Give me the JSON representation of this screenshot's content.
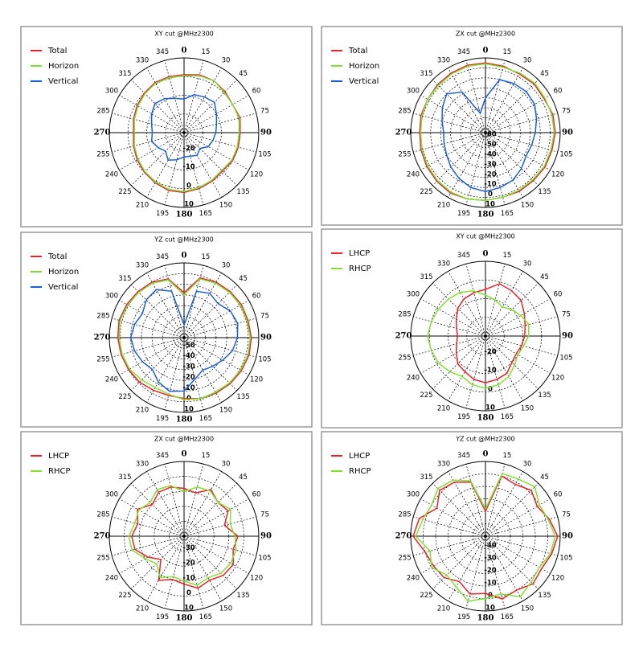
{
  "chart_data": [
    {
      "type": "polar",
      "title": "XY cut @MHz2300",
      "theta": [
        0,
        15,
        30,
        45,
        60,
        75,
        90,
        105,
        120,
        135,
        150,
        165,
        180,
        195,
        210,
        225,
        240,
        255,
        270,
        285,
        300,
        315,
        330,
        345
      ],
      "rlim": [
        -30,
        10
      ],
      "rticks": [
        -20,
        -10,
        0,
        10
      ],
      "series": [
        {
          "name": "Total",
          "color": "#e8202a",
          "values": [
            1,
            2,
            2,
            1,
            0,
            1,
            0,
            0,
            0,
            -1,
            0,
            1,
            2,
            2,
            1,
            0,
            -1,
            -2,
            -3,
            -2,
            -1,
            0,
            1,
            1
          ]
        },
        {
          "name": "Horizon",
          "color": "#80e030",
          "values": [
            0.5,
            1.5,
            2,
            0.5,
            0,
            0.5,
            -0.5,
            -0.5,
            -0.5,
            -1.5,
            -0.5,
            0.5,
            1.5,
            1.5,
            0.5,
            -0.5,
            -1.5,
            -2.5,
            -3.5,
            -2.5,
            -1.5,
            -0.5,
            0.5,
            0.5
          ]
        },
        {
          "name": "Vertical",
          "color": "#1a5fd6",
          "values": [
            -12,
            -9,
            -8,
            -7,
            -10,
            -12,
            -13,
            -14,
            -15,
            -18,
            -16,
            -17,
            -17,
            -15,
            -13,
            -16,
            -14,
            -12,
            -13,
            -12,
            -10,
            -8,
            -9,
            -11
          ]
        }
      ]
    },
    {
      "type": "polar",
      "title": "ZX cut @MHz2300",
      "theta": [
        0,
        15,
        30,
        45,
        60,
        75,
        90,
        105,
        120,
        135,
        150,
        165,
        180,
        195,
        210,
        225,
        240,
        255,
        270,
        285,
        300,
        315,
        330,
        345
      ],
      "rlim": [
        -65,
        10
      ],
      "rticks": [
        -60,
        -50,
        -40,
        -30,
        -20,
        -10,
        0,
        10
      ],
      "series": [
        {
          "name": "Total",
          "color": "#e8202a",
          "values": [
            5,
            4,
            3,
            4,
            3,
            5,
            5,
            4,
            4,
            3,
            3,
            2,
            3,
            4,
            5,
            4,
            3,
            2,
            1,
            2,
            2,
            3,
            4,
            5
          ]
        },
        {
          "name": "Horizon",
          "color": "#80e030",
          "values": [
            4,
            3,
            4,
            5,
            4,
            4,
            4,
            3,
            3,
            2,
            2,
            2,
            3,
            4,
            4,
            3,
            2,
            1,
            0,
            1,
            2,
            2,
            3,
            4
          ]
        },
        {
          "name": "Vertical",
          "color": "#1a5fd6",
          "values": [
            -30,
            -10,
            -8,
            -7,
            -8,
            -12,
            -15,
            -17,
            -18,
            -14,
            -10,
            -8,
            -6,
            -8,
            -12,
            -16,
            -20,
            -22,
            -23,
            -20,
            -15,
            -10,
            -18,
            -45
          ]
        }
      ]
    },
    {
      "type": "polar",
      "title": "YZ cut @MHz2300",
      "theta": [
        0,
        15,
        30,
        45,
        60,
        75,
        90,
        105,
        120,
        135,
        150,
        165,
        180,
        195,
        210,
        225,
        240,
        255,
        270,
        285,
        300,
        315,
        330,
        345
      ],
      "rlim": [
        -60,
        10
      ],
      "rticks": [
        -50,
        -40,
        -30,
        -20,
        -10,
        0,
        10
      ],
      "series": [
        {
          "name": "Total",
          "color": "#e8202a",
          "values": [
            -18,
            -2,
            0,
            1,
            2,
            2,
            3,
            3,
            2,
            1,
            0,
            -1,
            -3,
            -4,
            -3,
            -1,
            0,
            1,
            2,
            3,
            2,
            1,
            0,
            -3
          ]
        },
        {
          "name": "Horizon",
          "color": "#80e030",
          "values": [
            -20,
            -3,
            -1,
            0,
            1,
            1,
            2,
            2,
            1,
            0,
            -1,
            -1,
            -2,
            -5,
            -6,
            -4,
            -1,
            0,
            1,
            2,
            1,
            0,
            -1,
            -4
          ]
        },
        {
          "name": "Vertical",
          "color": "#1a5fd6",
          "values": [
            -48,
            -15,
            -12,
            -15,
            -10,
            -8,
            -10,
            -13,
            -18,
            -22,
            -25,
            -20,
            -10,
            -8,
            -12,
            -18,
            -15,
            -12,
            -10,
            -12,
            -15,
            -10,
            -8,
            -15
          ]
        }
      ]
    },
    {
      "type": "polar",
      "title": "XY cut @MHz2300",
      "theta": [
        0,
        15,
        30,
        45,
        60,
        75,
        90,
        105,
        120,
        135,
        150,
        165,
        180,
        195,
        210,
        225,
        240,
        255,
        270,
        285,
        300,
        315,
        330,
        345
      ],
      "rlim": [
        -30,
        10
      ],
      "rticks": [
        -20,
        -10,
        0,
        10
      ],
      "series": [
        {
          "name": "LHCP",
          "color": "#e8202a",
          "values": [
            -5,
            -1,
            -2,
            -3,
            -6,
            -8,
            -9,
            -10,
            -11,
            -10,
            -7,
            -6,
            -5,
            -6,
            -8,
            -9,
            -12,
            -14,
            -15,
            -14,
            -12,
            -9,
            -7,
            -6
          ]
        },
        {
          "name": "RHCP",
          "color": "#80e030",
          "values": [
            -8,
            -10,
            -12,
            -10,
            -8,
            -6,
            -7,
            -9,
            -10,
            -8,
            -5,
            -3,
            -2,
            -3,
            -5,
            -3,
            -1,
            0,
            1,
            0,
            -1,
            -2,
            -3,
            -5
          ]
        }
      ]
    },
    {
      "type": "polar",
      "title": "ZX cut @MHz2300",
      "theta": [
        0,
        15,
        30,
        45,
        60,
        75,
        90,
        105,
        120,
        135,
        150,
        165,
        180,
        195,
        210,
        225,
        240,
        255,
        270,
        285,
        300,
        315,
        330,
        345
      ],
      "rlim": [
        -40,
        10
      ],
      "rticks": [
        -30,
        -20,
        -10,
        0,
        10
      ],
      "series": [
        {
          "name": "LHCP",
          "color": "#e8202a",
          "values": [
            -8,
            -10,
            -4,
            -8,
            -6,
            -12,
            -4,
            -6,
            -2,
            -3,
            -6,
            -4,
            -8,
            -10,
            -6,
            -18,
            -12,
            -6,
            -5,
            -8,
            -4,
            -10,
            -6,
            -6
          ]
        },
        {
          "name": "RHCP",
          "color": "#80e030",
          "values": [
            -10,
            -6,
            -5,
            -8,
            -4,
            -8,
            -6,
            -4,
            -4,
            -5,
            -8,
            -6,
            -10,
            -12,
            -8,
            -14,
            -10,
            -4,
            -3,
            -6,
            -5,
            -8,
            -4,
            -5
          ]
        }
      ]
    },
    {
      "type": "polar",
      "title": "YZ cut @MHz2300",
      "theta": [
        0,
        15,
        30,
        45,
        60,
        75,
        90,
        105,
        120,
        135,
        150,
        165,
        180,
        195,
        210,
        225,
        240,
        255,
        270,
        285,
        300,
        315,
        330,
        345
      ],
      "rlim": [
        -50,
        10
      ],
      "rticks": [
        -40,
        -30,
        -20,
        -10,
        0,
        10
      ],
      "series": [
        {
          "name": "LHCP",
          "color": "#e8202a",
          "values": [
            -30,
            0,
            -2,
            2,
            -2,
            3,
            8,
            5,
            2,
            4,
            0,
            2,
            -4,
            -2,
            -8,
            -3,
            -2,
            0,
            8,
            5,
            -5,
            2,
            0,
            -5
          ]
        },
        {
          "name": "RHCP",
          "color": "#80e030",
          "values": [
            -28,
            2,
            3,
            6,
            0,
            2,
            6,
            4,
            0,
            2,
            6,
            -2,
            0,
            4,
            -3,
            -6,
            0,
            -4,
            6,
            2,
            0,
            4,
            2,
            -4
          ]
        }
      ]
    }
  ]
}
